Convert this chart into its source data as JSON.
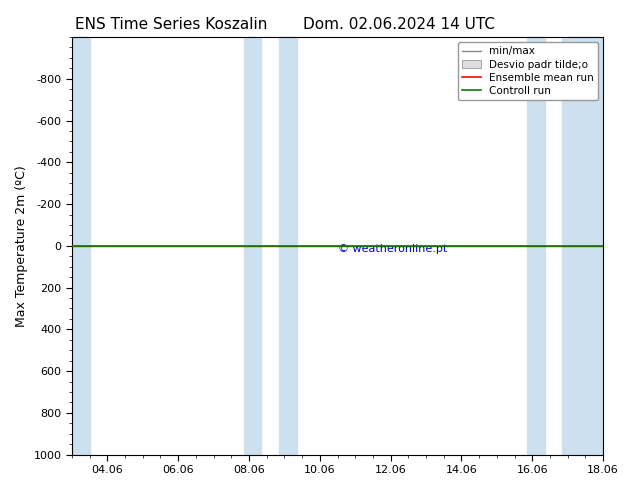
{
  "title_left": "ENS Time Series Koszalin",
  "title_right": "Dom. 02.06.2024 14 UTC",
  "ylabel": "Max Temperature 2m (ºC)",
  "ylim_top": -1000,
  "ylim_bottom": 1000,
  "yticks": [
    -800,
    -600,
    -400,
    -200,
    0,
    200,
    400,
    600,
    800,
    1000
  ],
  "xlim": [
    0,
    15
  ],
  "xtick_positions": [
    1,
    3,
    5,
    7,
    9,
    11,
    13,
    15
  ],
  "xtick_labels": [
    "04.06",
    "06.06",
    "08.06",
    "10.06",
    "12.06",
    "14.06",
    "16.06",
    "18.06"
  ],
  "shaded_regions": [
    [
      0.0,
      0.5
    ],
    [
      4.85,
      5.35
    ],
    [
      5.85,
      6.35
    ],
    [
      12.85,
      13.35
    ],
    [
      13.85,
      15.0
    ]
  ],
  "shaded_color": "#cce0f0",
  "green_line_y": 0,
  "red_line_y": 0,
  "copyright_text": "© weatheronline.pt",
  "copyright_color": "#0000cc",
  "background_color": "#ffffff",
  "title_fontsize": 11,
  "ylabel_fontsize": 9,
  "tick_fontsize": 8,
  "legend_fontsize": 7.5
}
